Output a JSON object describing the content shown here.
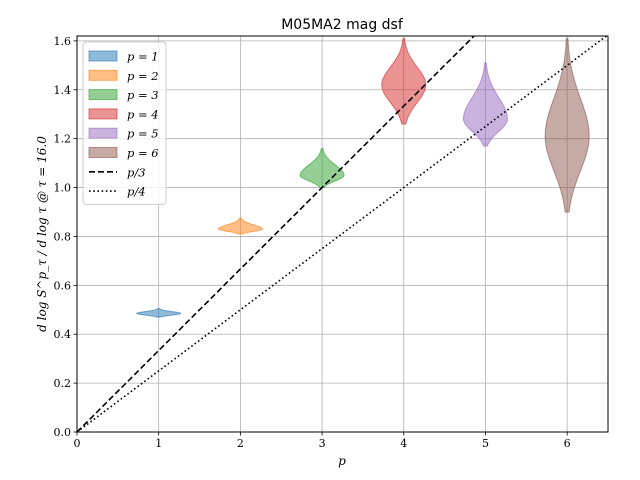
{
  "chart_data": {
    "type": "violin",
    "title": "M05MA2 mag dsf",
    "xlabel": "p",
    "ylabel": "d log S^p_τ / d log τ @ τ = 16.0",
    "xlim": [
      0,
      6.5
    ],
    "ylim": [
      0,
      1.62
    ],
    "xticks": [
      "0",
      "1",
      "2",
      "3",
      "4",
      "5",
      "6"
    ],
    "yticks": [
      "0.0",
      "0.2",
      "0.4",
      "0.6",
      "0.8",
      "1.0",
      "1.2",
      "1.4",
      "1.6"
    ],
    "grid": true,
    "legend_position": "upper-left",
    "series": [
      {
        "name": "p = 1",
        "x": 1,
        "center": 0.485,
        "min": 0.47,
        "max": 0.505,
        "color": "#1f77b4"
      },
      {
        "name": "p = 2",
        "x": 2,
        "center": 0.83,
        "min": 0.81,
        "max": 0.875,
        "color": "#ff7f0e"
      },
      {
        "name": "p = 3",
        "x": 3,
        "center": 1.05,
        "min": 1.0,
        "max": 1.16,
        "color": "#2ca02c"
      },
      {
        "name": "p = 4",
        "x": 4,
        "center": 1.42,
        "min": 1.26,
        "max": 1.61,
        "color": "#d62728"
      },
      {
        "name": "p = 5",
        "x": 5,
        "center": 1.28,
        "min": 1.17,
        "max": 1.51,
        "color": "#9467bd"
      },
      {
        "name": "p = 6",
        "x": 6,
        "center": 1.21,
        "min": 0.9,
        "max": 1.61,
        "color": "#8c564b"
      }
    ],
    "reference_lines": [
      {
        "name": "p/3",
        "slope": 0.3333333,
        "style": "dashed"
      },
      {
        "name": "p/4",
        "slope": 0.25,
        "style": "dotted"
      }
    ]
  }
}
